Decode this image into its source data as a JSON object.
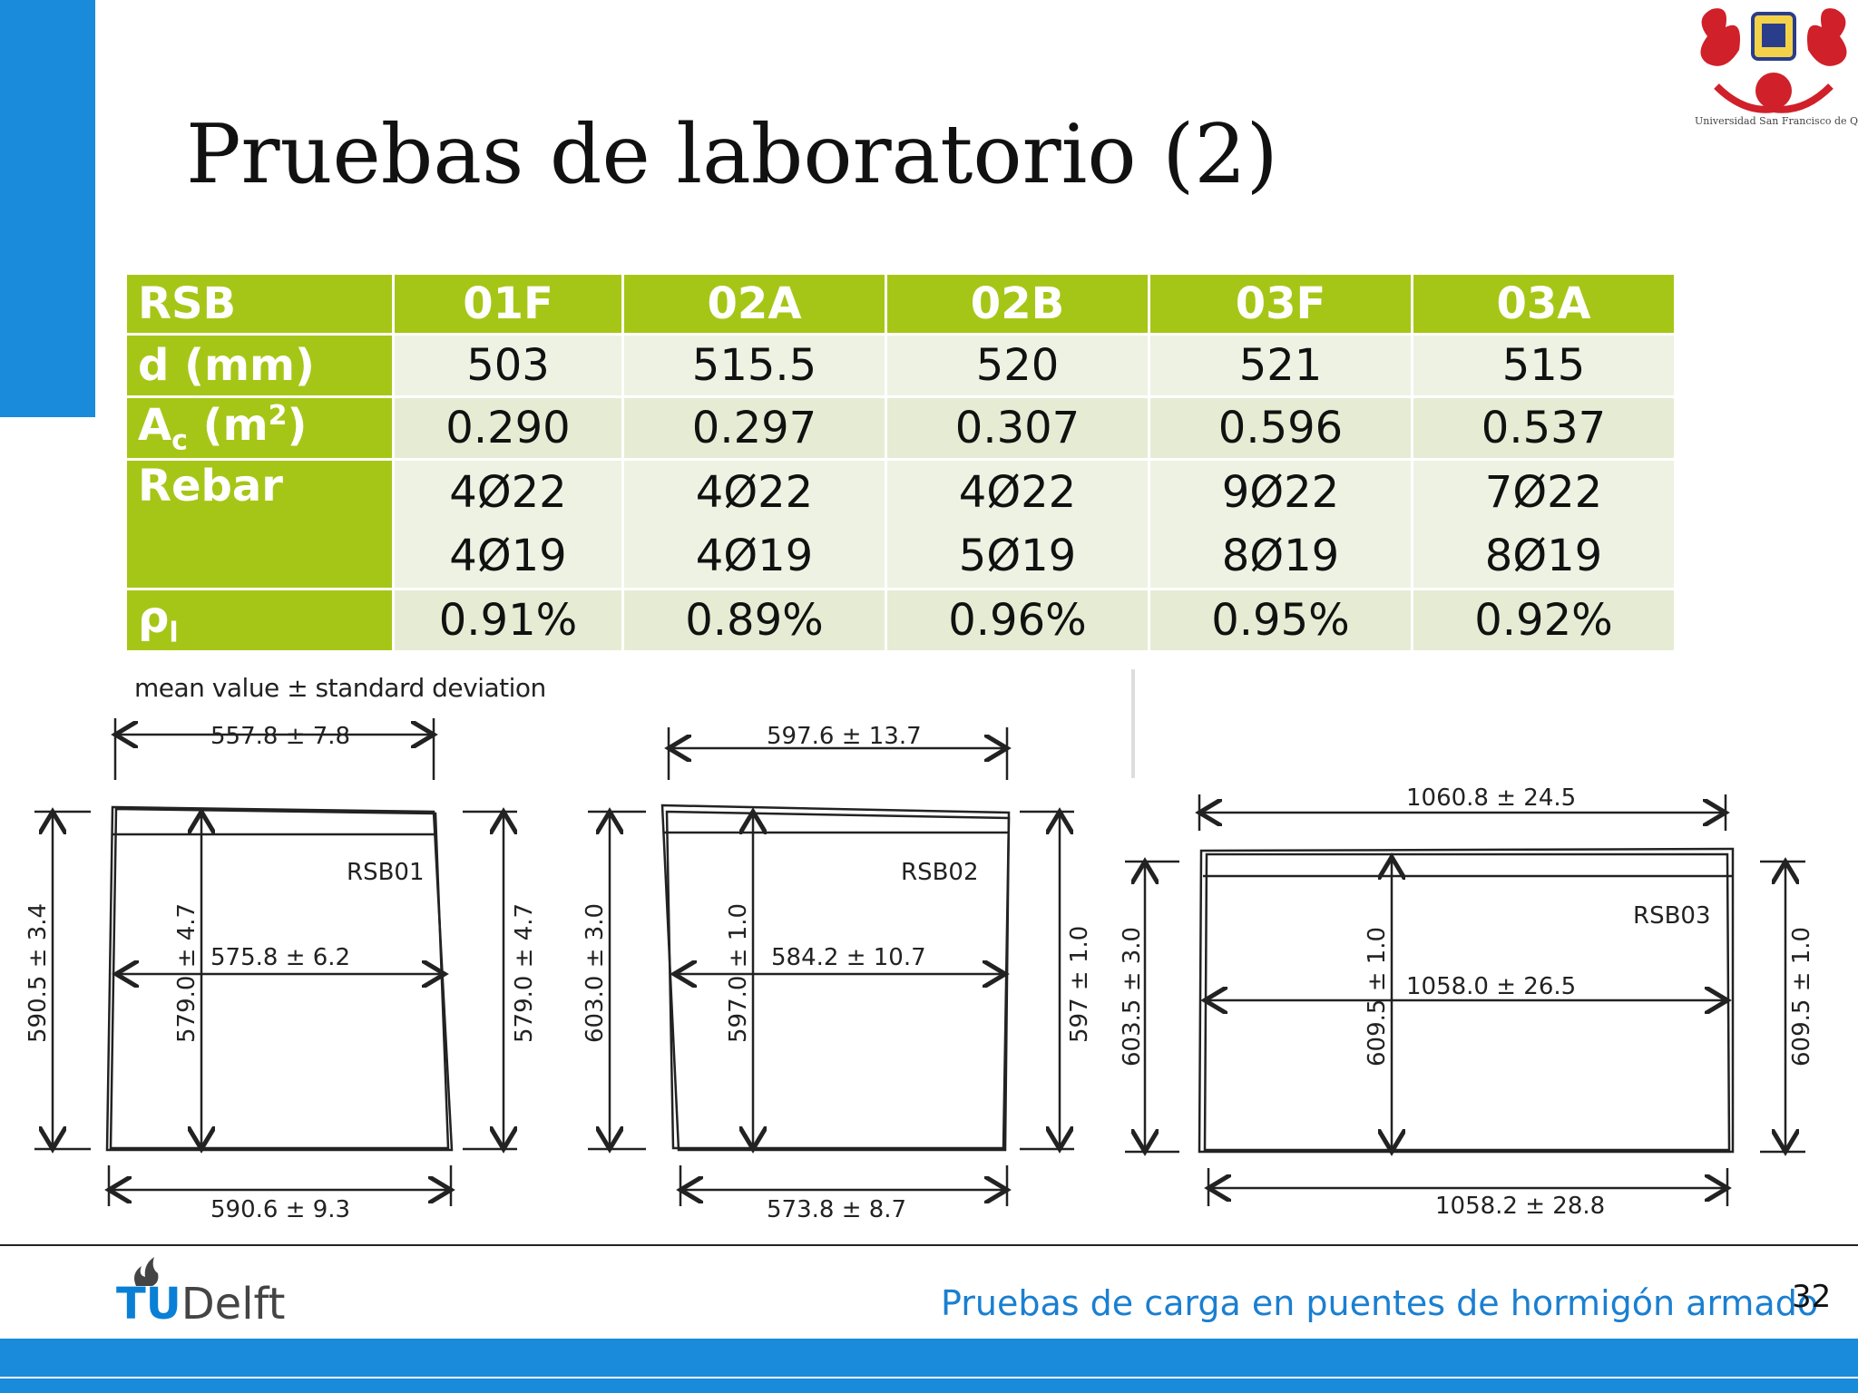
{
  "title": "Pruebas de laboratorio (2)",
  "logo": {
    "caption": "Universidad San Francisco de Quito"
  },
  "table": {
    "header": [
      "RSB",
      "01F",
      "02A",
      "02B",
      "03F",
      "03A"
    ],
    "d": {
      "label": "d (mm)",
      "values": [
        "503",
        "515.5",
        "520",
        "521",
        "515"
      ]
    },
    "ac": {
      "label_main": "A",
      "label_sub": "c",
      "label_mid": " (m",
      "label_sup": "2",
      "label_end": ")",
      "values": [
        "0.290",
        "0.297",
        "0.307",
        "0.596",
        "0.537"
      ]
    },
    "rebar": {
      "label": "Rebar",
      "top": [
        "4Ø22",
        "4Ø22",
        "4Ø22",
        "9Ø22",
        "7Ø22"
      ],
      "bottom": [
        "4Ø19",
        "4Ø19",
        "5Ø19",
        "8Ø19",
        "8Ø19"
      ]
    },
    "rho": {
      "label_main": "ρ",
      "label_sub": "l",
      "values": [
        "0.91%",
        "0.89%",
        "0.96%",
        "0.95%",
        "0.92%"
      ]
    }
  },
  "drawings": {
    "note": "mean value ± standard deviation",
    "rsb01": {
      "label": "RSB01",
      "top": "557.8 ± 7.8",
      "mid": "575.8 ± 6.2",
      "bottom": "590.6 ± 9.3",
      "left": "590.5 ± 3.4",
      "inner": "579.0 ± 4.7",
      "right": "579.0 ± 4.7"
    },
    "rsb02": {
      "label": "RSB02",
      "top": "597.6 ± 13.7",
      "mid": "584.2 ± 10.7",
      "bottom": "573.8 ± 8.7",
      "left": "603.0 ± 3.0",
      "inner": "597.0 ± 1.0",
      "right": "597 ± 1.0"
    },
    "rsb03": {
      "label": "RSB03",
      "top": "1060.8 ± 24.5",
      "mid": "1058.0 ± 26.5",
      "bottom": "1058.2 ± 28.8",
      "left": "603.5 ± 3.0",
      "inner": "609.5 ± 1.0",
      "right": "609.5 ± 1.0"
    }
  },
  "footer": {
    "brand_tu": "TU",
    "brand_delft": "Delft",
    "text": "Pruebas de carga en puentes de hormigón armado",
    "page": "32"
  }
}
